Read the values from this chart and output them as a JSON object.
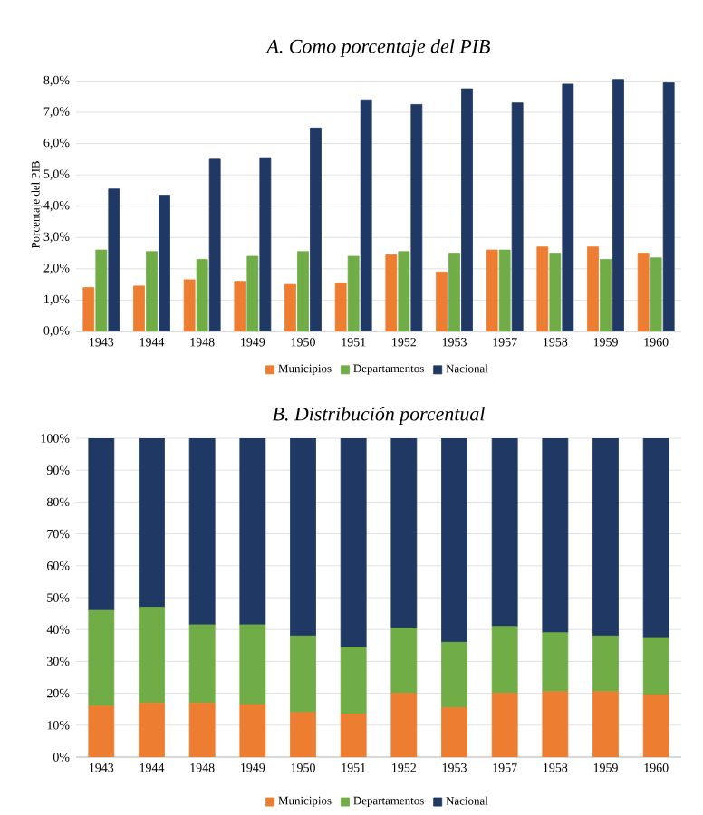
{
  "chart_data": [
    {
      "type": "bar",
      "title": "A. Como porcentaje del PIB",
      "ylabel": "Porcentaje del PIB",
      "categories": [
        "1943",
        "1944",
        "1948",
        "1949",
        "1950",
        "1951",
        "1952",
        "1953",
        "1957",
        "1958",
        "1959",
        "1960"
      ],
      "series": [
        {
          "name": "Municipios",
          "color": "#ed7d31",
          "values": [
            1.4,
            1.45,
            1.65,
            1.6,
            1.5,
            1.55,
            2.45,
            1.9,
            2.6,
            2.7,
            2.7,
            2.5
          ]
        },
        {
          "name": "Departamentos",
          "color": "#70ad47",
          "values": [
            2.6,
            2.55,
            2.3,
            2.4,
            2.55,
            2.4,
            2.55,
            2.5,
            2.6,
            2.5,
            2.3,
            2.35
          ]
        },
        {
          "name": "Nacional",
          "color": "#203864",
          "values": [
            4.55,
            4.35,
            5.5,
            5.55,
            6.5,
            7.4,
            7.25,
            7.75,
            7.3,
            7.9,
            8.05,
            7.95
          ]
        }
      ],
      "ylim": [
        0,
        8.1
      ],
      "yticks": [
        {
          "value": 0,
          "label": "0,0%"
        },
        {
          "value": 1,
          "label": "1,0%"
        },
        {
          "value": 2,
          "label": "2,0%"
        },
        {
          "value": 3,
          "label": "3,0%"
        },
        {
          "value": 4,
          "label": "4,0%"
        },
        {
          "value": 5,
          "label": "5,0%"
        },
        {
          "value": 6,
          "label": "6,0%"
        },
        {
          "value": 7,
          "label": "7,0%"
        },
        {
          "value": 8,
          "label": "8,0%"
        }
      ],
      "grid": "y",
      "legend": "bottom"
    },
    {
      "type": "bar",
      "title": "B. Distribución porcentual",
      "stacked": true,
      "categories": [
        "1943",
        "1944",
        "1948",
        "1949",
        "1950",
        "1951",
        "1952",
        "1953",
        "1957",
        "1958",
        "1959",
        "1960"
      ],
      "series": [
        {
          "name": "Municipios",
          "color": "#ed7d31",
          "values": [
            16,
            17,
            17,
            16.5,
            14,
            13.5,
            20,
            15.5,
            20,
            20.5,
            20.5,
            19.5
          ]
        },
        {
          "name": "Departamentos",
          "color": "#70ad47",
          "values": [
            30,
            30,
            24.5,
            25,
            24,
            21,
            20.5,
            20.5,
            21,
            18.5,
            17.5,
            18
          ]
        },
        {
          "name": "Nacional",
          "color": "#203864",
          "values": [
            54,
            53,
            58.5,
            58.5,
            62,
            65.5,
            59.5,
            64,
            59,
            61,
            62,
            62.5
          ]
        }
      ],
      "ylim": [
        0,
        100
      ],
      "yticks": [
        {
          "value": 0,
          "label": "0%"
        },
        {
          "value": 10,
          "label": "10%"
        },
        {
          "value": 20,
          "label": "20%"
        },
        {
          "value": 30,
          "label": "30%"
        },
        {
          "value": 40,
          "label": "40%"
        },
        {
          "value": 50,
          "label": "50%"
        },
        {
          "value": 60,
          "label": "60%"
        },
        {
          "value": 70,
          "label": "70%"
        },
        {
          "value": 80,
          "label": "80%"
        },
        {
          "value": 90,
          "label": "90%"
        },
        {
          "value": 100,
          "label": "100%"
        }
      ],
      "grid": "y",
      "legend": "bottom"
    }
  ]
}
